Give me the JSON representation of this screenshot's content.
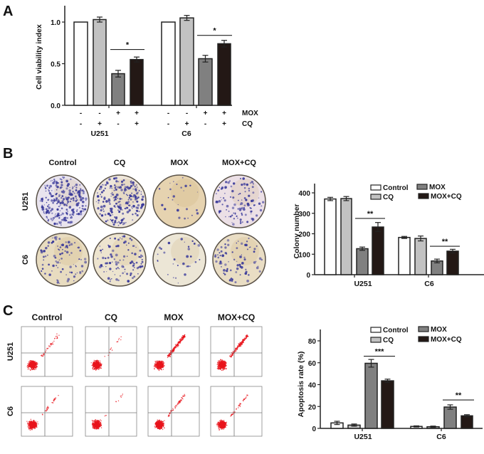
{
  "panels": {
    "a": "A",
    "b": "B",
    "c": "C"
  },
  "colony_images": {
    "columns": [
      "Control",
      "CQ",
      "MOX",
      "MOX+CQ"
    ],
    "rows": [
      "U251",
      "C6"
    ]
  },
  "flow_images": {
    "columns": [
      "Control",
      "CQ",
      "MOX",
      "MOX+CQ"
    ],
    "rows": [
      "U251",
      "C6"
    ]
  },
  "colors": {
    "Control": "#ffffff",
    "CQ": "#c2c2c2",
    "MOX": "#808080",
    "MOX+CQ": "#231815",
    "flow_dots": "#e8141c",
    "colony_dots": "#3a3a9a"
  },
  "chart_data": [
    {
      "type": "bar",
      "ylabel": "Cell viability index",
      "ylim": [
        0,
        1.2
      ],
      "yticks": [
        "0.0",
        "0.5",
        "1.0"
      ],
      "ytick_values": [
        0,
        0.5,
        1.0
      ],
      "groups": [
        "U251",
        "C6"
      ],
      "condition_rows": [
        {
          "label": "MOX",
          "signs": [
            "-",
            "-",
            "+",
            "+"
          ]
        },
        {
          "label": "CQ",
          "signs": [
            "-",
            "+",
            "-",
            "+"
          ]
        }
      ],
      "series": [
        {
          "values": [
            1.0,
            1.0
          ],
          "errors": [
            0,
            0
          ]
        },
        {
          "values": [
            1.03,
            1.05
          ],
          "errors": [
            0.03,
            0.03
          ]
        },
        {
          "values": [
            0.38,
            0.56
          ],
          "errors": [
            0.04,
            0.04
          ]
        },
        {
          "values": [
            0.55,
            0.74
          ],
          "errors": [
            0.03,
            0.04
          ]
        }
      ],
      "significance": [
        {
          "group": 0,
          "from": 2,
          "to": 3,
          "y": 0.67,
          "label": "*"
        },
        {
          "group": 1,
          "from": 2,
          "to": 3,
          "y": 0.84,
          "label": "*"
        }
      ]
    },
    {
      "type": "bar",
      "ylabel": "Colony number",
      "ylim": [
        0,
        450
      ],
      "yticks": [
        "0",
        "100",
        "200",
        "300",
        "400"
      ],
      "ytick_values": [
        0,
        100,
        200,
        300,
        400
      ],
      "groups": [
        "U251",
        "C6"
      ],
      "legend": "top-right",
      "series": [
        {
          "name": "Control",
          "values": [
            370,
            182
          ],
          "errors": [
            8,
            5
          ]
        },
        {
          "name": "CQ",
          "values": [
            372,
            177
          ],
          "errors": [
            10,
            12
          ]
        },
        {
          "name": "MOX",
          "values": [
            127,
            67
          ],
          "errors": [
            8,
            9
          ]
        },
        {
          "name": "MOX+CQ",
          "values": [
            233,
            115
          ],
          "errors": [
            22,
            9
          ]
        }
      ],
      "significance": [
        {
          "group": 0,
          "from": 2,
          "to": 3,
          "y": 275,
          "label": "**"
        },
        {
          "group": 1,
          "from": 2,
          "to": 3,
          "y": 139,
          "label": "**"
        }
      ]
    },
    {
      "type": "bar",
      "ylabel": "Apoptosis rate (%)",
      "ylim": [
        0,
        90
      ],
      "yticks": [
        "0",
        "20",
        "40",
        "60",
        "80"
      ],
      "ytick_values": [
        0,
        20,
        40,
        60,
        80
      ],
      "groups": [
        "U251",
        "C6"
      ],
      "legend": "top-right",
      "series": [
        {
          "name": "Control",
          "values": [
            5,
            1.8
          ],
          "errors": [
            1.5,
            0.5
          ]
        },
        {
          "name": "CQ",
          "values": [
            3,
            1.5
          ],
          "errors": [
            1,
            0.6
          ]
        },
        {
          "name": "MOX",
          "values": [
            59.5,
            19.5
          ],
          "errors": [
            3.5,
            2
          ]
        },
        {
          "name": "MOX+CQ",
          "values": [
            43.5,
            11.5
          ],
          "errors": [
            1.5,
            1
          ]
        }
      ],
      "significance": [
        {
          "group": 0,
          "from": 2,
          "to": 3,
          "y": 66,
          "label": "***"
        },
        {
          "group": 1,
          "from": 2,
          "to": 3,
          "y": 26,
          "label": "**"
        }
      ]
    }
  ]
}
